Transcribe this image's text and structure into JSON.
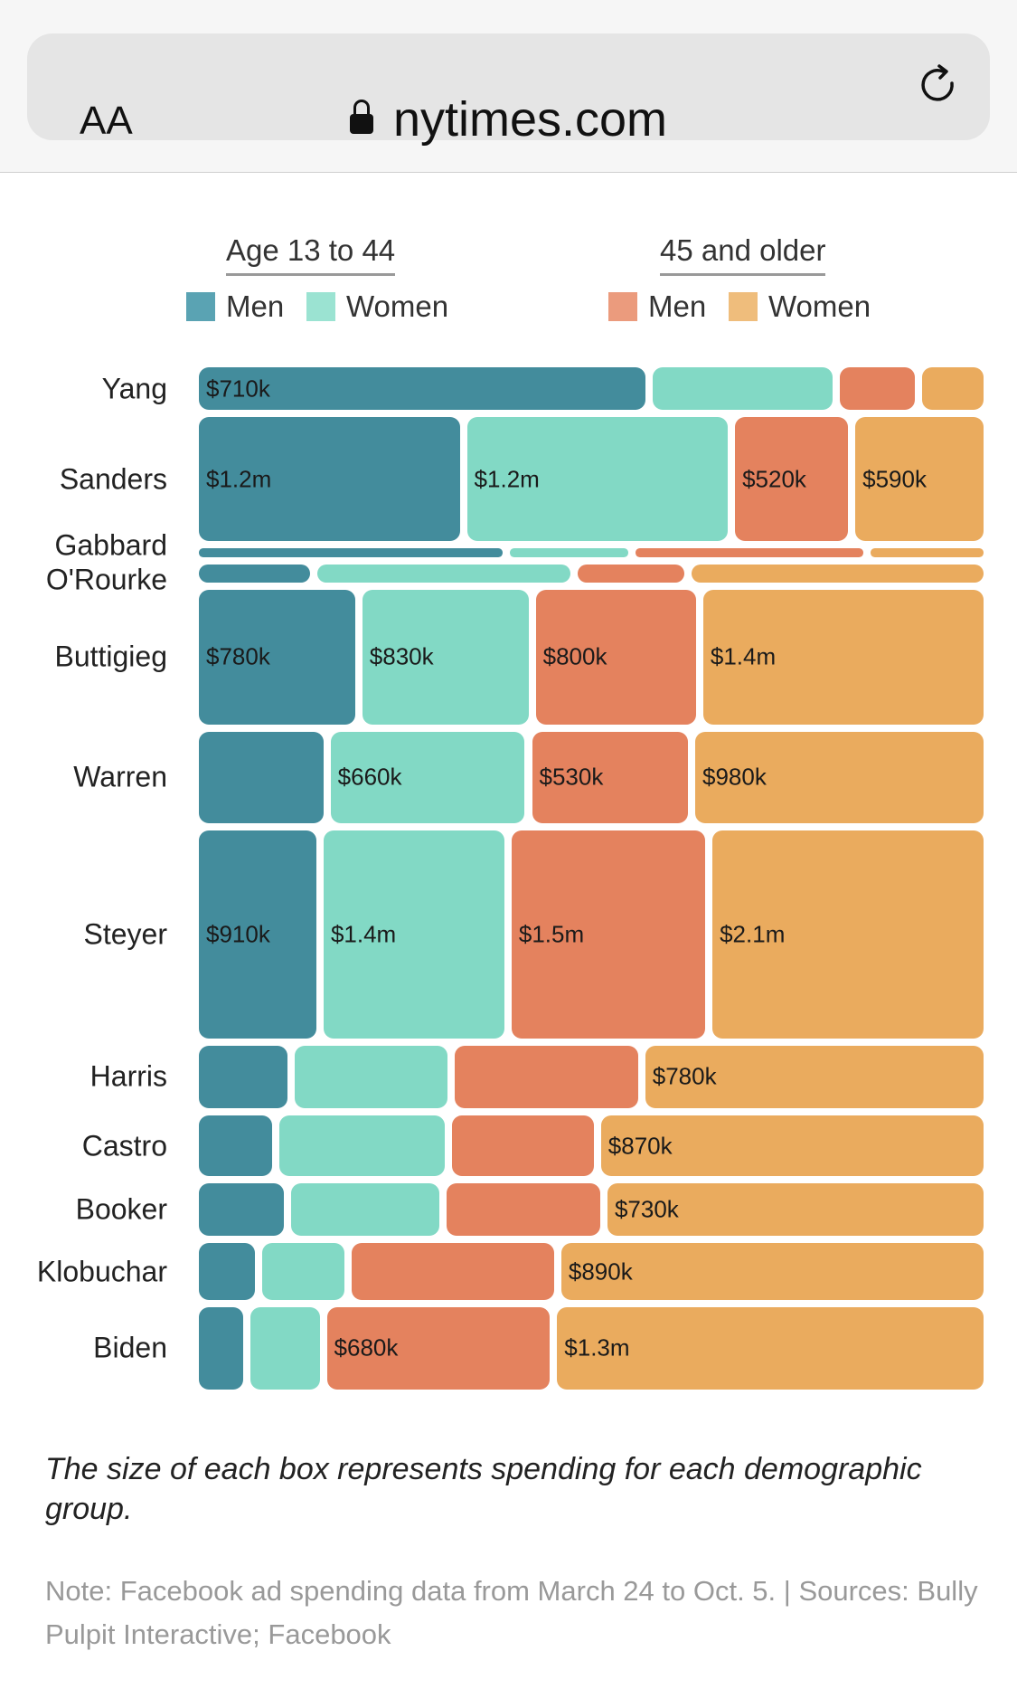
{
  "browser": {
    "text_size_label": "AA",
    "url": "nytimes.com",
    "lock_icon": "lock-icon",
    "reload_icon": "reload-icon"
  },
  "legend": {
    "groups": [
      {
        "title": "Age 13 to 44",
        "items": [
          {
            "label": "Men",
            "color": "#438C9C"
          },
          {
            "label": "Women",
            "color": "#82D9C5"
          }
        ]
      },
      {
        "title": "45 and older",
        "items": [
          {
            "label": "Men",
            "color": "#E4825E"
          },
          {
            "label": "Women",
            "color": "#EAAB5E"
          }
        ]
      }
    ]
  },
  "chart_data": {
    "type": "treemap",
    "title": "",
    "unit": "USD (millions)",
    "categories": [
      "Men 13-44",
      "Women 13-44",
      "Men 45+",
      "Women 45+"
    ],
    "rows": [
      {
        "name": "Yang",
        "values": [
          0.71,
          0.285,
          0.12,
          0.097
        ],
        "labels": [
          "$710k",
          "",
          "",
          ""
        ]
      },
      {
        "name": "Sanders",
        "values": [
          1.2,
          1.2,
          0.52,
          0.59
        ],
        "labels": [
          "$1.2m",
          "$1.2m",
          "$520k",
          "$590k"
        ]
      },
      {
        "name": "Gabbard",
        "values": [
          0.097,
          0.038,
          0.073,
          0.036
        ],
        "labels": [
          "",
          "",
          "",
          ""
        ]
      },
      {
        "name": "O'Rourke",
        "values": [
          0.076,
          0.172,
          0.073,
          0.199
        ],
        "labels": [
          "",
          "",
          "",
          ""
        ]
      },
      {
        "name": "Buttigieg",
        "values": [
          0.78,
          0.83,
          0.8,
          1.4
        ],
        "labels": [
          "$780k",
          "$830k",
          "$800k",
          "$1.4m"
        ]
      },
      {
        "name": "Warren",
        "values": [
          0.423,
          0.66,
          0.53,
          0.98
        ],
        "labels": [
          "",
          "$660k",
          "$530k",
          "$980k"
        ]
      },
      {
        "name": "Steyer",
        "values": [
          0.91,
          1.4,
          1.5,
          2.1
        ],
        "labels": [
          "$910k",
          "$1.4m",
          "$1.5m",
          "$2.1m"
        ]
      },
      {
        "name": "Harris",
        "values": [
          0.204,
          0.353,
          0.422,
          0.78
        ],
        "labels": [
          "",
          "",
          "",
          "$780k"
        ]
      },
      {
        "name": "Castro",
        "values": [
          0.167,
          0.375,
          0.323,
          0.87
        ],
        "labels": [
          "",
          "",
          "",
          "$870k"
        ]
      },
      {
        "name": "Booker",
        "values": [
          0.165,
          0.287,
          0.299,
          0.73
        ],
        "labels": [
          "",
          "",
          "",
          "$730k"
        ]
      },
      {
        "name": "Klobuchar",
        "values": [
          0.118,
          0.173,
          0.427,
          0.89
        ],
        "labels": [
          "",
          "",
          "",
          "$890k"
        ]
      },
      {
        "name": "Biden",
        "values": [
          0.136,
          0.21,
          0.68,
          1.3
        ],
        "labels": [
          "",
          "",
          "$680k",
          "$1.3m"
        ]
      }
    ],
    "colors": [
      "#438C9C",
      "#82D9C5",
      "#E4825E",
      "#EAAB5E"
    ]
  },
  "caption": "The size of each box represents spending for each demographic group.",
  "note": "Note: Facebook ad spending data from March 24 to Oct. 5. | Sources: Bully Pulpit Interactive; Facebook"
}
